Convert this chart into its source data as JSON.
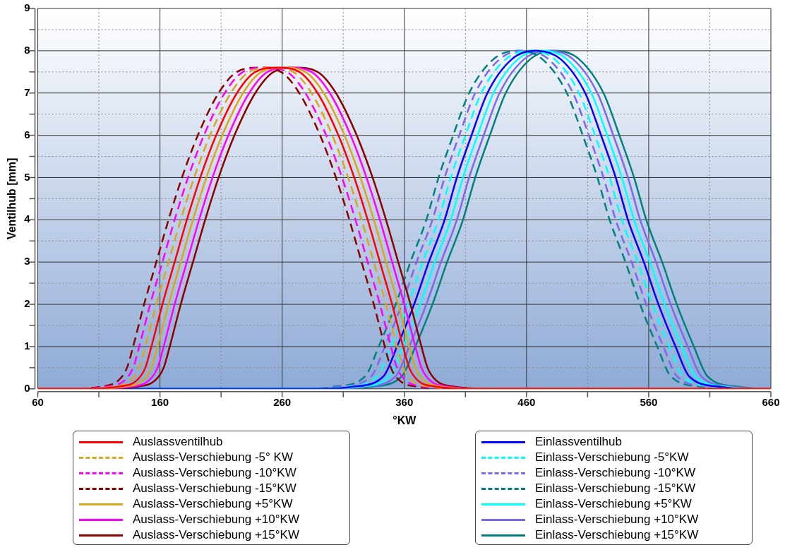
{
  "chart_data": {
    "type": "line",
    "xlabel": "°KW",
    "ylabel": "Ventilhub [mm]",
    "xlim": [
      60,
      660
    ],
    "ylim": [
      0,
      9
    ],
    "xticks": [
      60,
      {
        "value": 110,
        "label": null
      },
      160,
      {
        "value": 210,
        "label": null
      },
      260,
      {
        "value": 310,
        "label": null
      },
      360,
      {
        "value": 410,
        "label": null
      },
      460,
      {
        "value": 510,
        "label": null
      },
      560,
      {
        "value": 610,
        "label": null
      },
      660
    ],
    "yticks": [
      0,
      {
        "value": 0.5,
        "label": null
      },
      1,
      {
        "value": 1.5,
        "label": null
      },
      2,
      {
        "value": 2.5,
        "label": null
      },
      3,
      {
        "value": 3.5,
        "label": null
      },
      4,
      {
        "value": 4.5,
        "label": null
      },
      5,
      {
        "value": 5.5,
        "label": null
      },
      6,
      {
        "value": 6.5,
        "label": null
      },
      7,
      {
        "value": 7.5,
        "label": null
      },
      8,
      {
        "value": 8.5,
        "label": null
      },
      9
    ],
    "grid": true,
    "legend": "bottom",
    "marker": "none",
    "series": [
      {
        "name": "Auslassventilhub",
        "color": "#ff0000",
        "line_style": "solid",
        "x": [
          60,
          96,
          126,
          141,
          148,
          153,
          162,
          172,
          182,
          193,
          206,
          223,
          238,
          256,
          274,
          289,
          306,
          319,
          330,
          340,
          350,
          359,
          364,
          371,
          386,
          416,
          660
        ],
        "values": [
          0,
          0,
          0.05,
          0.2,
          0.5,
          1,
          2,
          3,
          4,
          5,
          6,
          7,
          7.5,
          7.6,
          7.5,
          7,
          6,
          5,
          4,
          3,
          2,
          1,
          0.5,
          0.2,
          0.05,
          0,
          0
        ]
      },
      {
        "name": "Auslass-Verschiebung -5° KW",
        "color": "#daa520",
        "line_style": "dashed",
        "x": [
          60,
          91,
          121,
          136,
          143,
          148,
          157,
          167,
          177,
          188,
          201,
          218,
          233,
          251,
          269,
          284,
          301,
          314,
          325,
          335,
          345,
          354,
          359,
          366,
          381,
          411,
          660
        ],
        "values": [
          0,
          0,
          0.05,
          0.2,
          0.5,
          1,
          2,
          3,
          4,
          5,
          6,
          7,
          7.5,
          7.6,
          7.5,
          7,
          6,
          5,
          4,
          3,
          2,
          1,
          0.5,
          0.2,
          0.05,
          0,
          0
        ]
      },
      {
        "name": "Auslass-Verschiebung -10°KW",
        "color": "#ff00ff",
        "line_style": "dashed",
        "x": [
          60,
          86,
          116,
          131,
          138,
          143,
          152,
          162,
          172,
          183,
          196,
          213,
          228,
          246,
          264,
          279,
          296,
          309,
          320,
          330,
          340,
          349,
          354,
          361,
          376,
          406,
          660
        ],
        "values": [
          0,
          0,
          0.05,
          0.2,
          0.5,
          1,
          2,
          3,
          4,
          5,
          6,
          7,
          7.5,
          7.6,
          7.5,
          7,
          6,
          5,
          4,
          3,
          2,
          1,
          0.5,
          0.2,
          0.05,
          0,
          0
        ]
      },
      {
        "name": "Auslass-Verschiebung -15°KW",
        "color": "#8b0000",
        "line_style": "dashed",
        "x": [
          60,
          81,
          111,
          126,
          133,
          138,
          147,
          157,
          167,
          178,
          191,
          208,
          223,
          241,
          259,
          274,
          291,
          304,
          315,
          325,
          335,
          344,
          349,
          356,
          371,
          401,
          660
        ],
        "values": [
          0,
          0,
          0.05,
          0.2,
          0.5,
          1,
          2,
          3,
          4,
          5,
          6,
          7,
          7.5,
          7.6,
          7.5,
          7,
          6,
          5,
          4,
          3,
          2,
          1,
          0.5,
          0.2,
          0.05,
          0,
          0
        ]
      },
      {
        "name": "Auslass-Verschiebung +5°KW",
        "color": "#daa520",
        "line_style": "solid",
        "x": [
          60,
          101,
          131,
          146,
          153,
          158,
          167,
          177,
          187,
          198,
          211,
          228,
          243,
          261,
          279,
          294,
          311,
          324,
          335,
          345,
          355,
          364,
          369,
          376,
          391,
          421,
          660
        ],
        "values": [
          0,
          0,
          0.05,
          0.2,
          0.5,
          1,
          2,
          3,
          4,
          5,
          6,
          7,
          7.5,
          7.6,
          7.5,
          7,
          6,
          5,
          4,
          3,
          2,
          1,
          0.5,
          0.2,
          0.05,
          0,
          0
        ]
      },
      {
        "name": "Auslass-Verschiebung +10°KW",
        "color": "#ff00ff",
        "line_style": "solid",
        "x": [
          60,
          106,
          136,
          151,
          158,
          163,
          172,
          182,
          192,
          203,
          216,
          233,
          248,
          266,
          284,
          299,
          316,
          329,
          340,
          350,
          360,
          369,
          374,
          381,
          396,
          426,
          660
        ],
        "values": [
          0,
          0,
          0.05,
          0.2,
          0.5,
          1,
          2,
          3,
          4,
          5,
          6,
          7,
          7.5,
          7.6,
          7.5,
          7,
          6,
          5,
          4,
          3,
          2,
          1,
          0.5,
          0.2,
          0.05,
          0,
          0
        ]
      },
      {
        "name": "Auslass-Verschiebung +15°KW",
        "color": "#8b0000",
        "line_style": "solid",
        "x": [
          60,
          111,
          141,
          156,
          163,
          168,
          177,
          187,
          197,
          208,
          221,
          238,
          253,
          271,
          289,
          304,
          321,
          334,
          345,
          355,
          365,
          374,
          379,
          386,
          401,
          431,
          660
        ],
        "values": [
          0,
          0,
          0.05,
          0.2,
          0.5,
          1,
          2,
          3,
          4,
          5,
          6,
          7,
          7.5,
          7.6,
          7.5,
          7,
          6,
          5,
          4,
          3,
          2,
          1,
          0.5,
          0.2,
          0.05,
          0,
          0
        ]
      },
      {
        "name": "Einlassventilhub",
        "color": "#0000ff",
        "line_style": "solid",
        "x": [
          60,
          293,
          318,
          343,
          354,
          368,
          380,
          393,
          403,
          415,
          428,
          448,
          468,
          488,
          508,
          521,
          533,
          543,
          556,
          568,
          582,
          593,
          618,
          643,
          660
        ],
        "values": [
          0,
          0,
          0.05,
          0.3,
          1,
          2,
          3,
          4,
          5,
          6,
          7,
          7.8,
          8,
          7.8,
          7,
          6,
          5,
          4,
          3,
          2,
          1,
          0.3,
          0.05,
          0,
          0
        ]
      },
      {
        "name": "Einlass-Verschiebung -5°KW",
        "color": "#00ffff",
        "line_style": "dashed",
        "x": [
          60,
          288,
          313,
          338,
          349,
          363,
          375,
          388,
          398,
          410,
          423,
          443,
          463,
          483,
          503,
          516,
          528,
          538,
          551,
          563,
          577,
          588,
          613,
          638,
          660
        ],
        "values": [
          0,
          0,
          0.05,
          0.3,
          1,
          2,
          3,
          4,
          5,
          6,
          7,
          7.8,
          8,
          7.8,
          7,
          6,
          5,
          4,
          3,
          2,
          1,
          0.3,
          0.05,
          0,
          0
        ]
      },
      {
        "name": "Einlass-Verschiebung -10°KW",
        "color": "#7b68ee",
        "line_style": "dashed",
        "x": [
          60,
          283,
          308,
          333,
          344,
          358,
          370,
          383,
          393,
          405,
          418,
          438,
          458,
          478,
          498,
          511,
          523,
          533,
          546,
          558,
          572,
          583,
          608,
          633,
          660
        ],
        "values": [
          0,
          0,
          0.05,
          0.3,
          1,
          2,
          3,
          4,
          5,
          6,
          7,
          7.8,
          8,
          7.8,
          7,
          6,
          5,
          4,
          3,
          2,
          1,
          0.3,
          0.05,
          0,
          0
        ]
      },
      {
        "name": "Einlass-Verschiebung -15°KW",
        "color": "#008080",
        "line_style": "dashed",
        "x": [
          60,
          278,
          303,
          328,
          339,
          353,
          365,
          378,
          388,
          400,
          413,
          433,
          453,
          473,
          493,
          506,
          518,
          528,
          541,
          553,
          567,
          578,
          603,
          628,
          660
        ],
        "values": [
          0,
          0,
          0.05,
          0.3,
          1,
          2,
          3,
          4,
          5,
          6,
          7,
          7.8,
          8,
          7.8,
          7,
          6,
          5,
          4,
          3,
          2,
          1,
          0.3,
          0.05,
          0,
          0
        ]
      },
      {
        "name": "Einlass-Verschiebung +5°KW",
        "color": "#00ffff",
        "line_style": "solid",
        "x": [
          60,
          298,
          323,
          348,
          359,
          373,
          385,
          398,
          408,
          420,
          433,
          453,
          473,
          493,
          513,
          526,
          538,
          548,
          561,
          573,
          587,
          598,
          623,
          648,
          660
        ],
        "values": [
          0,
          0,
          0.05,
          0.3,
          1,
          2,
          3,
          4,
          5,
          6,
          7,
          7.8,
          8,
          7.8,
          7,
          6,
          5,
          4,
          3,
          2,
          1,
          0.3,
          0.05,
          0,
          0
        ]
      },
      {
        "name": "Einlass-Verschiebung +10°KW",
        "color": "#7b68ee",
        "line_style": "solid",
        "x": [
          60,
          303,
          328,
          353,
          364,
          378,
          390,
          403,
          413,
          425,
          438,
          458,
          478,
          498,
          518,
          531,
          543,
          553,
          566,
          578,
          592,
          603,
          628,
          653,
          660
        ],
        "values": [
          0,
          0,
          0.05,
          0.3,
          1,
          2,
          3,
          4,
          5,
          6,
          7,
          7.8,
          8,
          7.8,
          7,
          6,
          5,
          4,
          3,
          2,
          1,
          0.3,
          0.05,
          0,
          0
        ]
      },
      {
        "name": "Einlass-Verschiebung +15°KW",
        "color": "#008080",
        "line_style": "solid",
        "x": [
          60,
          308,
          333,
          358,
          369,
          383,
          395,
          408,
          418,
          430,
          443,
          463,
          483,
          503,
          523,
          536,
          548,
          558,
          571,
          583,
          597,
          608,
          633,
          658,
          660
        ],
        "values": [
          0,
          0,
          0.05,
          0.3,
          1,
          2,
          3,
          4,
          5,
          6,
          7,
          7.8,
          8,
          7.8,
          7,
          6,
          5,
          4,
          3,
          2,
          1,
          0.3,
          0.05,
          0,
          0
        ]
      }
    ]
  }
}
